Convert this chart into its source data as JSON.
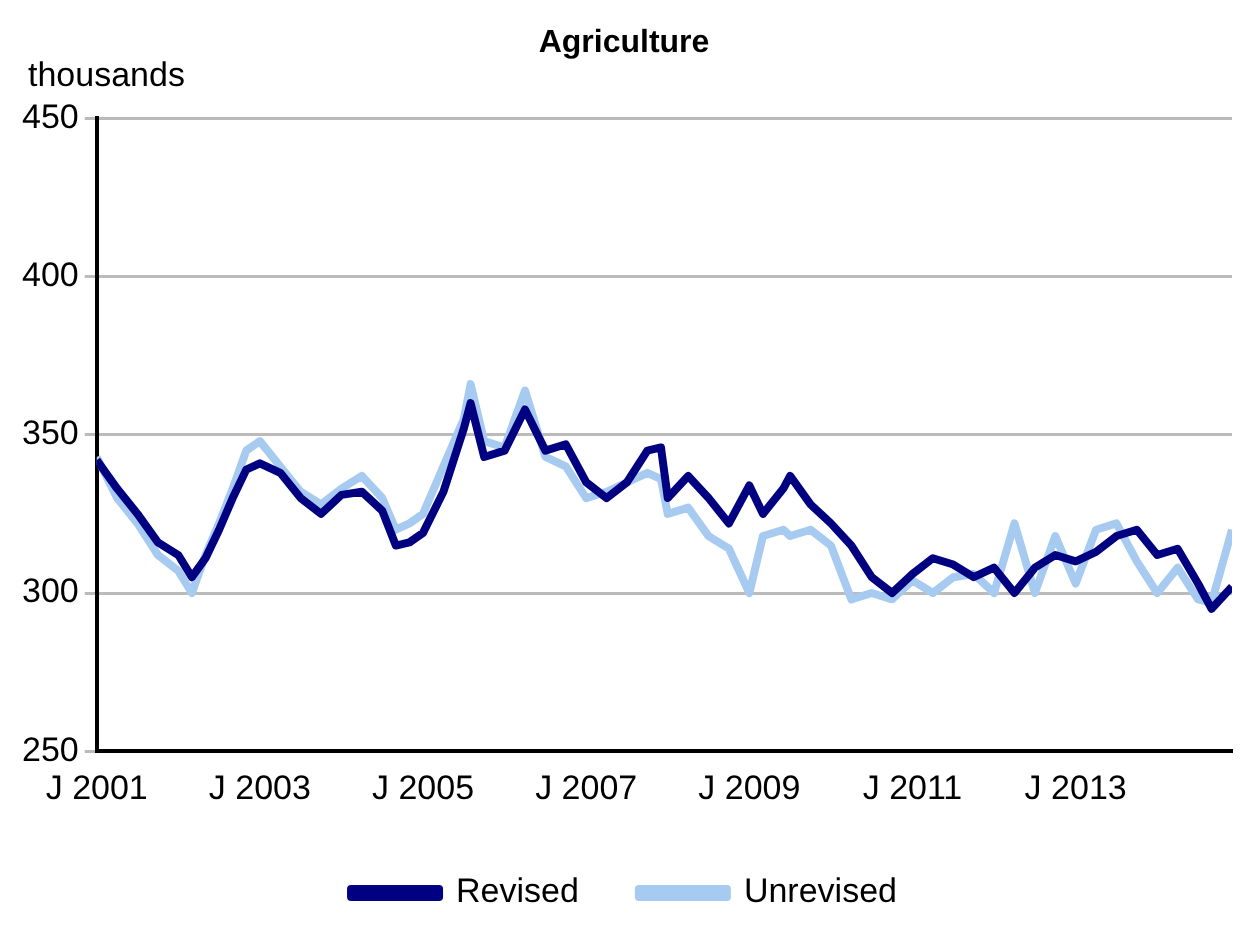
{
  "chart_data": {
    "type": "line",
    "title": "Agriculture",
    "ylabel": "thousands",
    "x": [
      "2001-01",
      "2001-04",
      "2001-07",
      "2001-10",
      "2002-01",
      "2002-03",
      "2002-05",
      "2002-07",
      "2002-09",
      "2002-11",
      "2003-01",
      "2003-04",
      "2003-07",
      "2003-10",
      "2004-01",
      "2004-04",
      "2004-07",
      "2004-09",
      "2004-11",
      "2005-01",
      "2005-04",
      "2005-07",
      "2005-08",
      "2005-10",
      "2006-01",
      "2006-04",
      "2006-07",
      "2006-10",
      "2007-01",
      "2007-04",
      "2007-07",
      "2007-10",
      "2007-12",
      "2008-01",
      "2008-04",
      "2008-07",
      "2008-10",
      "2009-01",
      "2009-03",
      "2009-06",
      "2009-07",
      "2009-10",
      "2010-01",
      "2010-04",
      "2010-07",
      "2010-10",
      "2011-01",
      "2011-04",
      "2011-07",
      "2011-10",
      "2012-01",
      "2012-04",
      "2012-07",
      "2012-10",
      "2013-01",
      "2013-04",
      "2013-07",
      "2013-10",
      "2014-01",
      "2014-04",
      "2014-07",
      "2014-09",
      "2014-12"
    ],
    "series": [
      {
        "name": "Revised",
        "color": "#000080",
        "values": [
          342,
          333,
          325,
          316,
          312,
          305,
          311,
          320,
          330,
          339,
          341,
          338,
          330,
          325,
          331,
          332,
          326,
          315,
          316,
          319,
          332,
          352,
          360,
          343,
          345,
          358,
          345,
          347,
          335,
          330,
          335,
          345,
          346,
          330,
          337,
          330,
          322,
          334,
          325,
          333,
          337,
          328,
          322,
          315,
          305,
          300,
          306,
          311,
          309,
          305,
          308,
          300,
          308,
          312,
          310,
          313,
          318,
          320,
          312,
          314,
          303,
          295,
          302
        ]
      },
      {
        "name": "Unrevised",
        "color": "#a6caf0",
        "values": [
          343,
          330,
          322,
          312,
          307,
          300,
          312,
          322,
          333,
          345,
          348,
          340,
          332,
          328,
          333,
          337,
          330,
          320,
          322,
          325,
          340,
          355,
          366,
          348,
          346,
          364,
          343,
          340,
          330,
          332,
          335,
          338,
          336,
          325,
          327,
          318,
          314,
          300,
          318,
          320,
          318,
          320,
          315,
          298,
          300,
          298,
          304,
          300,
          305,
          306,
          300,
          322,
          300,
          318,
          303,
          320,
          322,
          310,
          300,
          308,
          298,
          297,
          320
        ]
      }
    ],
    "xlim": [
      "2001-01",
      "2014-12"
    ],
    "xticks": [
      {
        "value": "2001-01",
        "label": "J 2001"
      },
      {
        "value": "2003-01",
        "label": "J 2003"
      },
      {
        "value": "2005-01",
        "label": "J 2005"
      },
      {
        "value": "2007-01",
        "label": "J 2007"
      },
      {
        "value": "2009-01",
        "label": "J 2009"
      },
      {
        "value": "2011-01",
        "label": "J 2011"
      },
      {
        "value": "2013-01",
        "label": "J 2013"
      }
    ],
    "ylim": [
      250,
      450
    ],
    "yticks": [
      250,
      300,
      350,
      400,
      450
    ],
    "grid": "y",
    "legend": "bottom",
    "marker": "none",
    "line_style": "solid"
  }
}
